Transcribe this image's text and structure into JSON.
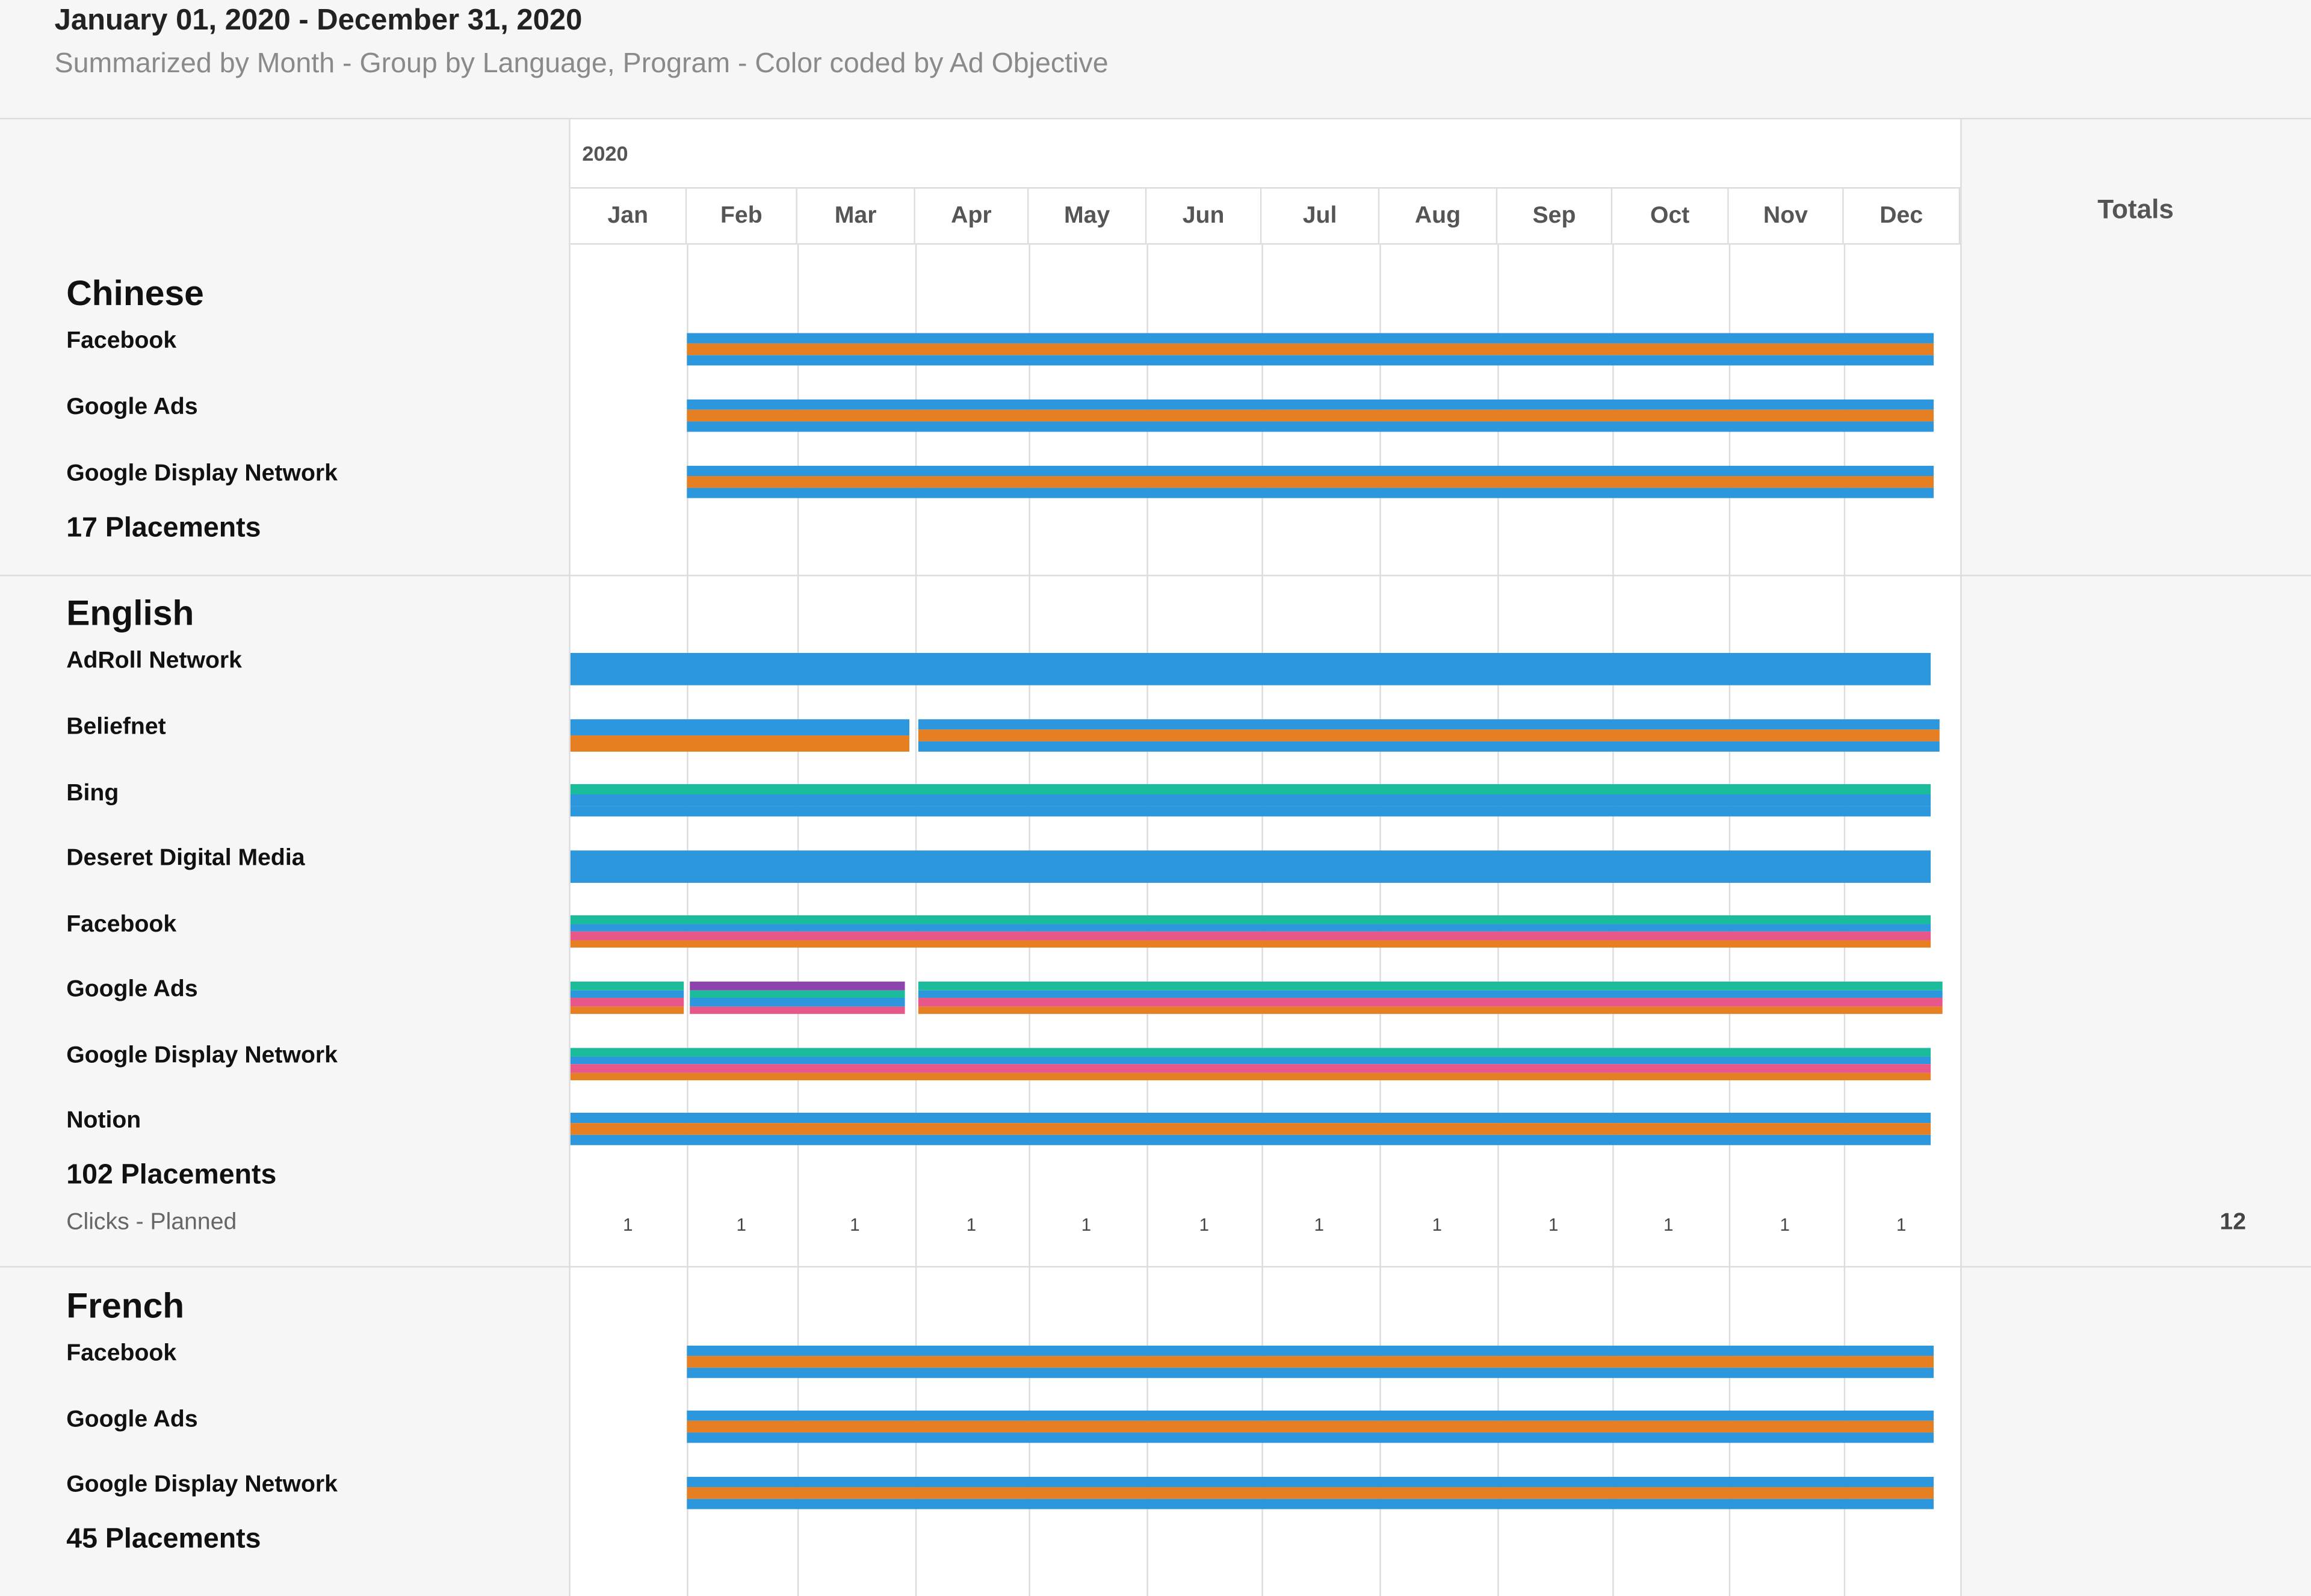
{
  "header": {
    "title": "January 01, 2020 - December 31, 2020",
    "subtitle": "Summarized by Month - Group by Language, Program - Color coded by Ad Objective"
  },
  "timeline": {
    "year": "2020",
    "months": [
      "Jan",
      "Feb",
      "Mar",
      "Apr",
      "May",
      "Jun",
      "Jul",
      "Aug",
      "Sep",
      "Oct",
      "Nov",
      "Dec"
    ],
    "totals_label": "Totals"
  },
  "colors": {
    "blue": "#2d97dd",
    "orange": "#e67e22",
    "teal": "#1abc9c",
    "pink": "#e8578a",
    "purple": "#8e44ad",
    "grid": "#dcdcdc"
  },
  "groups": [
    {
      "language": "Chinese",
      "placements": "17 Placements",
      "programs": [
        {
          "name": "Facebook",
          "bars": [
            {
              "start_month": 1.0,
              "end_month": 11.77,
              "stripes": [
                "blue",
                "orange",
                "blue"
              ]
            }
          ]
        },
        {
          "name": "Google Ads",
          "bars": [
            {
              "start_month": 1.0,
              "end_month": 11.77,
              "stripes": [
                "blue",
                "orange",
                "blue"
              ]
            }
          ]
        },
        {
          "name": "Google Display Network",
          "bars": [
            {
              "start_month": 1.0,
              "end_month": 11.77,
              "stripes": [
                "blue",
                "orange",
                "blue"
              ]
            }
          ]
        }
      ]
    },
    {
      "language": "English",
      "placements": "102 Placements",
      "metric_label": "Clicks - Planned",
      "metric_values": [
        "1",
        "1",
        "1",
        "1",
        "1",
        "1",
        "1",
        "1",
        "1",
        "1",
        "1",
        "1"
      ],
      "metric_total": "12",
      "programs": [
        {
          "name": "AdRoll Network",
          "bars": [
            {
              "start_month": 0.0,
              "end_month": 11.75,
              "stripes": [
                "blue"
              ]
            }
          ]
        },
        {
          "name": "Beliefnet",
          "bars": [
            {
              "start_month": 0.0,
              "end_month": 2.95,
              "stripes": [
                "blue",
                "orange"
              ]
            },
            {
              "start_month": 3.02,
              "end_month": 11.82,
              "stripes": [
                "blue",
                "orange",
                "blue"
              ]
            }
          ]
        },
        {
          "name": "Bing",
          "bars": [
            {
              "start_month": 0.0,
              "end_month": 11.75,
              "stripes": [
                "teal",
                "blue",
                "blue"
              ]
            }
          ]
        },
        {
          "name": "Deseret Digital Media",
          "bars": [
            {
              "start_month": 0.0,
              "end_month": 11.75,
              "stripes": [
                "blue"
              ]
            }
          ]
        },
        {
          "name": "Facebook",
          "bars": [
            {
              "start_month": 0.0,
              "end_month": 11.75,
              "stripes": [
                "teal",
                "blue",
                "pink",
                "orange"
              ]
            }
          ]
        },
        {
          "name": "Google Ads",
          "bars": [
            {
              "start_month": 0.0,
              "end_month": 0.98,
              "stripes": [
                "teal",
                "blue",
                "pink",
                "orange"
              ]
            },
            {
              "start_month": 1.03,
              "end_month": 2.91,
              "stripes": [
                "purple",
                "teal",
                "blue",
                "pink"
              ]
            },
            {
              "start_month": 3.02,
              "end_month": 11.85,
              "stripes": [
                "teal",
                "blue",
                "pink",
                "orange"
              ]
            }
          ]
        },
        {
          "name": "Google Display Network",
          "bars": [
            {
              "start_month": 0.0,
              "end_month": 11.75,
              "stripes": [
                "teal",
                "blue",
                "pink",
                "orange"
              ]
            }
          ]
        },
        {
          "name": "Notion",
          "bars": [
            {
              "start_month": 0.0,
              "end_month": 11.75,
              "stripes": [
                "blue",
                "orange",
                "blue"
              ]
            }
          ]
        }
      ]
    },
    {
      "language": "French",
      "placements": "45 Placements",
      "programs": [
        {
          "name": "Facebook",
          "bars": [
            {
              "start_month": 1.0,
              "end_month": 11.77,
              "stripes": [
                "blue",
                "orange",
                "blue"
              ]
            }
          ]
        },
        {
          "name": "Google Ads",
          "bars": [
            {
              "start_month": 1.0,
              "end_month": 11.77,
              "stripes": [
                "blue",
                "orange",
                "blue"
              ]
            }
          ]
        },
        {
          "name": "Google Display Network",
          "bars": [
            {
              "start_month": 1.0,
              "end_month": 11.77,
              "stripes": [
                "blue",
                "orange",
                "blue"
              ]
            }
          ]
        }
      ]
    }
  ]
}
